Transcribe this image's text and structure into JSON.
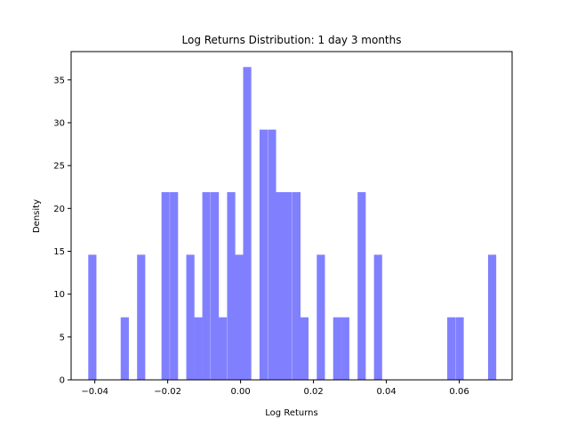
{
  "chart_data": {
    "type": "bar",
    "title": "Log Returns Distribution: 1 day 3 months",
    "xlabel": "Log Returns",
    "ylabel": "Density",
    "xlim": [
      -0.0465,
      0.0745
    ],
    "ylim": [
      0,
      38.3
    ],
    "bin_width": 0.00224,
    "xticks": [
      {
        "value": -0.04,
        "label": "−0.04"
      },
      {
        "value": -0.02,
        "label": "−0.02"
      },
      {
        "value": 0.0,
        "label": "0.00"
      },
      {
        "value": 0.02,
        "label": "0.02"
      },
      {
        "value": 0.04,
        "label": "0.04"
      },
      {
        "value": 0.06,
        "label": "0.06"
      }
    ],
    "yticks": [
      {
        "value": 0,
        "label": "0"
      },
      {
        "value": 5,
        "label": "5"
      },
      {
        "value": 10,
        "label": "10"
      },
      {
        "value": 15,
        "label": "15"
      },
      {
        "value": 20,
        "label": "20"
      },
      {
        "value": 25,
        "label": "25"
      },
      {
        "value": 30,
        "label": "30"
      },
      {
        "value": 35,
        "label": "35"
      }
    ],
    "bar_color": "#8080ff",
    "grid": false,
    "bins": [
      {
        "x": -0.0418,
        "density": 14.6
      },
      {
        "x": -0.0396,
        "density": 0
      },
      {
        "x": -0.0373,
        "density": 0
      },
      {
        "x": -0.0351,
        "density": 0
      },
      {
        "x": -0.0329,
        "density": 7.3
      },
      {
        "x": -0.0306,
        "density": 0
      },
      {
        "x": -0.0284,
        "density": 14.6
      },
      {
        "x": -0.0261,
        "density": 0
      },
      {
        "x": -0.0239,
        "density": 0
      },
      {
        "x": -0.0217,
        "density": 21.9
      },
      {
        "x": -0.0194,
        "density": 21.9
      },
      {
        "x": -0.0172,
        "density": 0
      },
      {
        "x": -0.0149,
        "density": 14.6
      },
      {
        "x": -0.0127,
        "density": 7.3
      },
      {
        "x": -0.0105,
        "density": 21.9
      },
      {
        "x": -0.0082,
        "density": 21.9
      },
      {
        "x": -0.006,
        "density": 7.3
      },
      {
        "x": -0.0037,
        "density": 21.9
      },
      {
        "x": -0.0015,
        "density": 14.6
      },
      {
        "x": 0.0007,
        "density": 36.5
      },
      {
        "x": 0.003,
        "density": 0
      },
      {
        "x": 0.0052,
        "density": 29.2
      },
      {
        "x": 0.0075,
        "density": 29.2
      },
      {
        "x": 0.0097,
        "density": 21.9
      },
      {
        "x": 0.0119,
        "density": 21.9
      },
      {
        "x": 0.0142,
        "density": 21.9
      },
      {
        "x": 0.0164,
        "density": 7.3
      },
      {
        "x": 0.0187,
        "density": 0
      },
      {
        "x": 0.0209,
        "density": 14.6
      },
      {
        "x": 0.0231,
        "density": 0
      },
      {
        "x": 0.0254,
        "density": 7.3
      },
      {
        "x": 0.0276,
        "density": 7.3
      },
      {
        "x": 0.0299,
        "density": 0
      },
      {
        "x": 0.0321,
        "density": 21.9
      },
      {
        "x": 0.0343,
        "density": 0
      },
      {
        "x": 0.0366,
        "density": 14.6
      },
      {
        "x": 0.0388,
        "density": 0
      },
      {
        "x": 0.0411,
        "density": 0
      },
      {
        "x": 0.0433,
        "density": 0
      },
      {
        "x": 0.0455,
        "density": 0
      },
      {
        "x": 0.0478,
        "density": 0
      },
      {
        "x": 0.05,
        "density": 0
      },
      {
        "x": 0.0523,
        "density": 0
      },
      {
        "x": 0.0545,
        "density": 0
      },
      {
        "x": 0.0567,
        "density": 7.3
      },
      {
        "x": 0.059,
        "density": 7.3
      },
      {
        "x": 0.0612,
        "density": 0
      },
      {
        "x": 0.0635,
        "density": 0
      },
      {
        "x": 0.0657,
        "density": 0
      },
      {
        "x": 0.0679,
        "density": 14.6
      }
    ]
  }
}
